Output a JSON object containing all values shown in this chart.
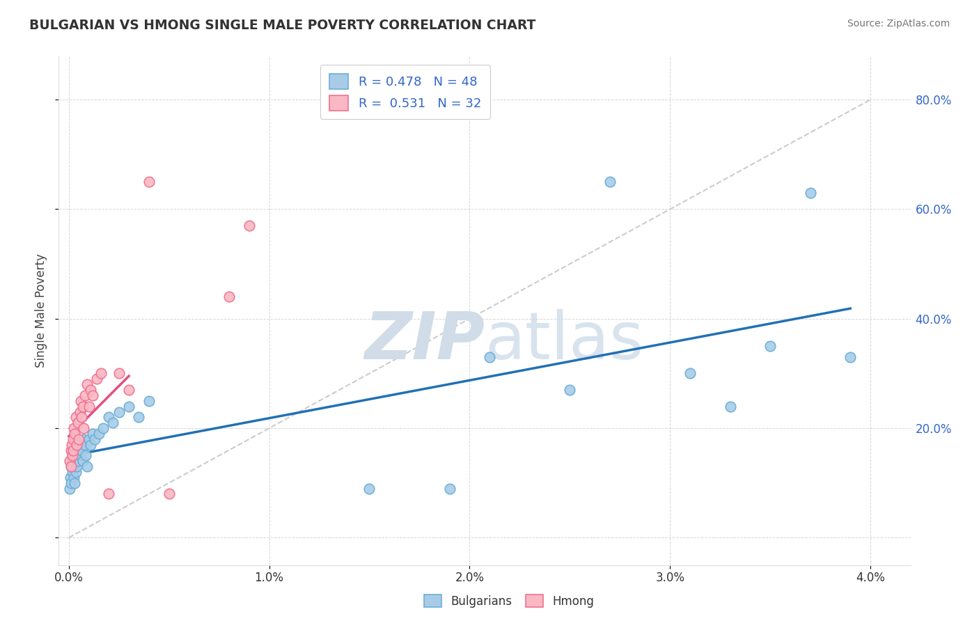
{
  "title": "BULGARIAN VS HMONG SINGLE MALE POVERTY CORRELATION CHART",
  "source": "Source: ZipAtlas.com",
  "ylabel": "Single Male Poverty",
  "xlim": [
    -0.0005,
    0.042
  ],
  "ylim": [
    -0.05,
    0.88
  ],
  "R_bulgarian": 0.478,
  "N_bulgarian": 48,
  "R_hmong": 0.531,
  "N_hmong": 32,
  "bulgarian_color": "#a8cce8",
  "bulgarian_edge_color": "#6baed6",
  "hmong_color": "#f9b8c4",
  "hmong_edge_color": "#f07090",
  "bulgarian_line_color": "#2171b5",
  "hmong_line_color": "#e05080",
  "diagonal_color": "#cccccc",
  "background_color": "#ffffff",
  "grid_color": "#cccccc",
  "title_color": "#333333",
  "legend_text_color": "#3366cc",
  "watermark": "ZIPatlas",
  "watermark_color": "#dce8f5",
  "bx": [
    5e-05,
    8e-05,
    0.0001,
    0.00012,
    0.00015,
    0.00018,
    0.0002,
    0.00022,
    0.00025,
    0.00028,
    0.0003,
    0.00032,
    0.00035,
    0.00038,
    0.0004,
    0.00042,
    0.00045,
    0.0005,
    0.00055,
    0.0006,
    0.00065,
    0.0007,
    0.00075,
    0.0008,
    0.00085,
    0.0009,
    0.001,
    0.0011,
    0.0012,
    0.0013,
    0.0015,
    0.0017,
    0.002,
    0.0022,
    0.0025,
    0.003,
    0.0035,
    0.004,
    0.015,
    0.019,
    0.021,
    0.025,
    0.027,
    0.031,
    0.033,
    0.035,
    0.037,
    0.039
  ],
  "by": [
    0.09,
    0.11,
    0.13,
    0.1,
    0.14,
    0.12,
    0.15,
    0.13,
    0.11,
    0.1,
    0.14,
    0.16,
    0.12,
    0.15,
    0.13,
    0.17,
    0.14,
    0.16,
    0.15,
    0.17,
    0.16,
    0.14,
    0.18,
    0.17,
    0.15,
    0.13,
    0.18,
    0.17,
    0.19,
    0.18,
    0.19,
    0.2,
    0.22,
    0.21,
    0.23,
    0.24,
    0.22,
    0.25,
    0.09,
    0.09,
    0.33,
    0.27,
    0.65,
    0.3,
    0.24,
    0.35,
    0.63,
    0.33
  ],
  "hx": [
    5e-05,
    0.0001,
    0.00012,
    0.00015,
    0.00018,
    0.0002,
    0.00022,
    0.00025,
    0.0003,
    0.00035,
    0.0004,
    0.00045,
    0.0005,
    0.00055,
    0.0006,
    0.00065,
    0.0007,
    0.00075,
    0.0008,
    0.0009,
    0.001,
    0.0011,
    0.0012,
    0.0014,
    0.0016,
    0.002,
    0.0025,
    0.003,
    0.004,
    0.005,
    0.008,
    0.009
  ],
  "hy": [
    0.14,
    0.16,
    0.13,
    0.17,
    0.15,
    0.18,
    0.16,
    0.2,
    0.19,
    0.22,
    0.17,
    0.21,
    0.18,
    0.23,
    0.25,
    0.22,
    0.24,
    0.2,
    0.26,
    0.28,
    0.24,
    0.27,
    0.26,
    0.29,
    0.3,
    0.08,
    0.3,
    0.27,
    0.65,
    0.08,
    0.44,
    0.57
  ]
}
